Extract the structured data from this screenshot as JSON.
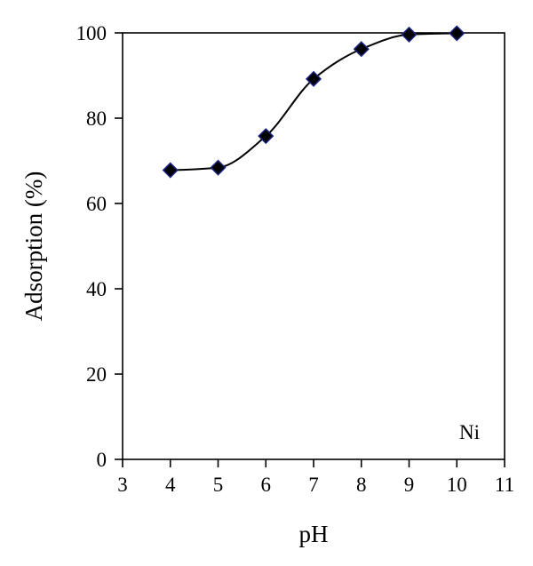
{
  "chart_data": {
    "type": "scatter",
    "x": [
      4,
      5,
      6,
      7,
      8,
      9,
      10
    ],
    "series": [
      {
        "values": [
          67.8,
          68.4,
          75.8,
          89.2,
          96.2,
          99.6,
          99.9
        ]
      }
    ],
    "xlabel": "pH",
    "ylabel": "Adsorption (%)",
    "xlim": [
      3,
      11
    ],
    "ylim": [
      0,
      100
    ],
    "xticks": [
      "3",
      "4",
      "5",
      "6",
      "7",
      "8",
      "9",
      "10",
      "11"
    ],
    "yticks": [
      "0",
      "20",
      "40",
      "60",
      "80",
      "100"
    ],
    "annotation": "Ni",
    "smooth_line": true,
    "grid": false,
    "legend": "none",
    "colors": {
      "marker_fill": "#000000",
      "marker_stroke": "#1a237e",
      "line": "#000000"
    }
  }
}
